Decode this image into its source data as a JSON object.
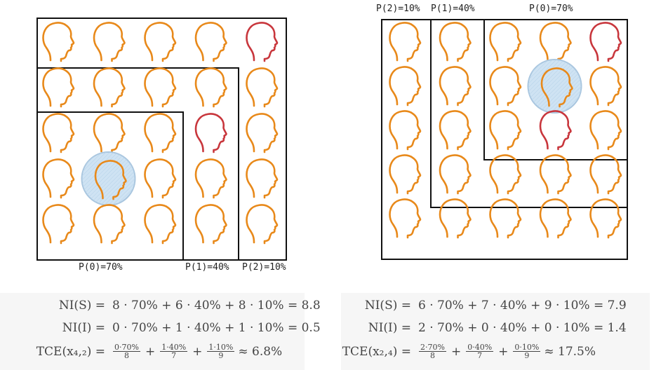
{
  "colors": {
    "head_default": "#e8891a",
    "head_highlight": "#c8363c",
    "target_circle_fill": "#cfe3f3",
    "target_circle_stroke": "#a9c6df",
    "box_stroke": "#111111",
    "formula_bg": "#f6f6f6"
  },
  "icons": {
    "person": "head-profile-icon",
    "target": "hatched-circle-icon"
  },
  "left": {
    "label_p0": "P(0)=70%",
    "label_p1": "P(1)=40%",
    "label_p2": "P(2)=10%",
    "highlighted_heads": [
      [
        0,
        4
      ],
      [
        2,
        3
      ]
    ],
    "target_cell": [
      3,
      1
    ],
    "formulas": {
      "ni_s_lhs": "NI(S) =",
      "ni_s_rhs": "8 · 70% + 6 · 40% + 8 · 10% = 8.8",
      "ni_i_lhs": "NI(I) =",
      "ni_i_rhs": "0 · 70% + 1 · 40% + 1 · 10% = 0.5",
      "tce_lhs": "TCE(x₄,₂) =",
      "tce_f1_num": "0·70%",
      "tce_f1_den": "8",
      "tce_f2_num": "1·40%",
      "tce_f2_den": "7",
      "tce_f3_num": "1·10%",
      "tce_f3_den": "9",
      "tce_result": "≈ 6.8%"
    }
  },
  "right": {
    "label_p2": "P(2)=10%",
    "label_p1": "P(1)=40%",
    "label_p0": "P(0)=70%",
    "highlighted_heads": [
      [
        0,
        4
      ],
      [
        2,
        3
      ]
    ],
    "target_cell": [
      1,
      3
    ],
    "formulas": {
      "ni_s_lhs": "NI(S) =",
      "ni_s_rhs": "6 · 70% + 7 · 40% + 9 · 10% = 7.9",
      "ni_i_lhs": "NI(I) =",
      "ni_i_rhs": "2 · 70% + 0 · 40% + 0 · 10% = 1.4",
      "tce_lhs": "TCE(x₂,₄) =",
      "tce_f1_num": "2·70%",
      "tce_f1_den": "8",
      "tce_f2_num": "0·40%",
      "tce_f2_den": "7",
      "tce_f3_num": "0·10%",
      "tce_f3_den": "9",
      "tce_result": "≈ 17.5%"
    }
  }
}
